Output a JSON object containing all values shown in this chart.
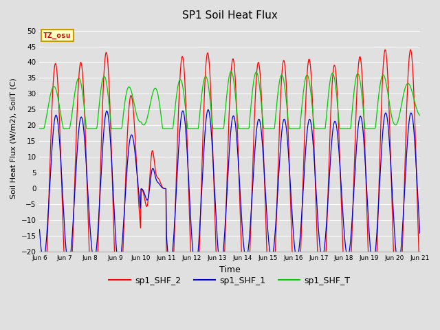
{
  "title": "SP1 Soil Heat Flux",
  "ylabel": "Soil Heat Flux (W/m2), SoilT (C)",
  "xlabel": "Time",
  "ylim": [
    -20,
    52
  ],
  "yticks": [
    -20,
    -15,
    -10,
    -5,
    0,
    5,
    10,
    15,
    20,
    25,
    30,
    35,
    40,
    45,
    50
  ],
  "xtick_labels": [
    "Jun 6",
    "Jun 7",
    "Jun 8",
    "Jun 9",
    "Jun 10",
    "Jun 11",
    "Jun 12",
    "Jun 13",
    "Jun 14",
    "Jun 15",
    "Jun 16",
    "Jun 17",
    "Jun 18",
    "Jun 19",
    "Jun 20",
    "Jun 21"
  ],
  "color_shf2": "#ff0000",
  "color_shf1": "#0000dd",
  "color_shft": "#00cc00",
  "legend_labels": [
    "sp1_SHF_2",
    "sp1_SHF_1",
    "sp1_SHF_T"
  ],
  "tz_label": "TZ_osu",
  "bg_color": "#e0e0e0",
  "plot_bg_color": "#e0e0e0",
  "figsize": [
    6.4,
    4.8
  ],
  "dpi": 100
}
